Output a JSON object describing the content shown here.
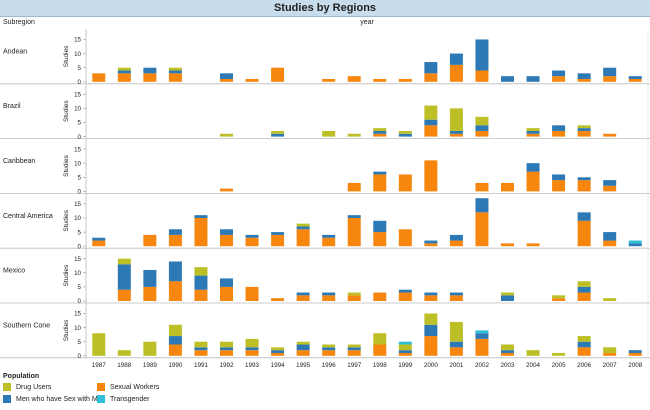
{
  "chart_data": {
    "type": "bar",
    "stacked": true,
    "title": "Studies by Regions",
    "row_header": "Subregion",
    "column_header": "year",
    "ylabel": "Studies",
    "ylim": [
      0,
      18
    ],
    "yticks": [
      0,
      5,
      10,
      15
    ],
    "grid": false,
    "legend_title": "Population",
    "legend_position": "bottom-left",
    "categories": [
      "1987",
      "1988",
      "1989",
      "1990",
      "1991",
      "1992",
      "1993",
      "1994",
      "1995",
      "1996",
      "1997",
      "1998",
      "1999",
      "2000",
      "2001",
      "2002",
      "2003",
      "2004",
      "2005",
      "2006",
      "2007",
      "2008"
    ],
    "series": [
      {
        "name": "Sexual Workers",
        "color": "#f7860f"
      },
      {
        "name": "Men who have Sex with Men",
        "color": "#2d79b5"
      },
      {
        "name": "Drug Users",
        "color": "#bcc026"
      },
      {
        "name": "Transgender",
        "color": "#2cbfd6"
      }
    ],
    "legend_order": [
      "Drug Users",
      "Sexual Workers",
      "Men who have Sex with Men",
      "Transgender"
    ],
    "panels": [
      {
        "name": "Andean",
        "values": {
          "Sexual Workers": [
            3,
            3,
            3,
            3,
            0,
            1,
            1,
            5,
            0,
            1,
            2,
            1,
            1,
            3,
            6,
            4,
            0,
            0,
            2,
            1,
            2,
            1
          ],
          "Men who have Sex with Men": [
            0,
            1,
            2,
            1,
            0,
            2,
            0,
            0,
            0,
            0,
            0,
            0,
            0,
            4,
            4,
            11,
            2,
            2,
            2,
            2,
            3,
            1
          ],
          "Drug Users": [
            0,
            1,
            0,
            1,
            0,
            0,
            0,
            0,
            0,
            0,
            0,
            0,
            0,
            0,
            0,
            0,
            0,
            0,
            0,
            0,
            0,
            0
          ],
          "Transgender": [
            0,
            0,
            0,
            0,
            0,
            0,
            0,
            0,
            0,
            0,
            0,
            0,
            0,
            0,
            0,
            0,
            0,
            0,
            0,
            0,
            0,
            0
          ]
        }
      },
      {
        "name": "Brazil",
        "values": {
          "Sexual Workers": [
            0,
            0,
            0,
            0,
            0,
            0,
            0,
            0,
            0,
            0,
            0,
            1,
            0,
            4,
            1,
            2,
            0,
            1,
            2,
            2,
            1,
            0
          ],
          "Men who have Sex with Men": [
            0,
            0,
            0,
            0,
            0,
            0,
            0,
            1,
            0,
            0,
            0,
            1,
            1,
            2,
            1,
            2,
            0,
            1,
            2,
            1,
            0,
            0
          ],
          "Drug Users": [
            0,
            0,
            0,
            0,
            0,
            1,
            0,
            1,
            0,
            2,
            1,
            1,
            1,
            5,
            8,
            3,
            0,
            1,
            0,
            1,
            0,
            0
          ],
          "Transgender": [
            0,
            0,
            0,
            0,
            0,
            0,
            0,
            0,
            0,
            0,
            0,
            0,
            0,
            0,
            0,
            0,
            0,
            0,
            0,
            0,
            0,
            0
          ]
        }
      },
      {
        "name": "Caribbean",
        "values": {
          "Sexual Workers": [
            0,
            0,
            0,
            0,
            0,
            1,
            0,
            0,
            0,
            0,
            3,
            6,
            6,
            11,
            0,
            3,
            3,
            7,
            4,
            4,
            2,
            0
          ],
          "Men who have Sex with Men": [
            0,
            0,
            0,
            0,
            0,
            0,
            0,
            0,
            0,
            0,
            0,
            1,
            0,
            0,
            0,
            0,
            0,
            3,
            2,
            1,
            2,
            0
          ],
          "Drug Users": [
            0,
            0,
            0,
            0,
            0,
            0,
            0,
            0,
            0,
            0,
            0,
            0,
            0,
            0,
            0,
            0,
            0,
            0,
            0,
            0,
            0,
            0
          ],
          "Transgender": [
            0,
            0,
            0,
            0,
            0,
            0,
            0,
            0,
            0,
            0,
            0,
            0,
            0,
            0,
            0,
            0,
            0,
            0,
            0,
            0,
            0,
            0
          ]
        }
      },
      {
        "name": "Central America",
        "values": {
          "Sexual Workers": [
            2,
            0,
            4,
            4,
            10,
            4,
            3,
            4,
            6,
            3,
            10,
            5,
            6,
            1,
            2,
            12,
            1,
            1,
            0,
            9,
            2,
            0
          ],
          "Men who have Sex with Men": [
            1,
            0,
            0,
            2,
            1,
            2,
            1,
            1,
            1,
            1,
            1,
            4,
            0,
            1,
            2,
            5,
            0,
            0,
            0,
            3,
            3,
            1
          ],
          "Drug Users": [
            0,
            0,
            0,
            0,
            0,
            0,
            0,
            0,
            1,
            0,
            0,
            0,
            0,
            0,
            0,
            0,
            0,
            0,
            0,
            0,
            0,
            0
          ],
          "Transgender": [
            0,
            0,
            0,
            0,
            0,
            0,
            0,
            0,
            0,
            0,
            0,
            0,
            0,
            0,
            0,
            0,
            0,
            0,
            0,
            0,
            0,
            1
          ]
        }
      },
      {
        "name": "Mexico",
        "values": {
          "Sexual Workers": [
            0,
            4,
            5,
            7,
            4,
            5,
            5,
            1,
            2,
            2,
            2,
            3,
            3,
            2,
            2,
            0,
            0,
            0,
            1,
            3,
            0,
            0
          ],
          "Men who have Sex with Men": [
            0,
            9,
            6,
            7,
            5,
            3,
            0,
            0,
            1,
            1,
            0,
            0,
            1,
            1,
            1,
            0,
            2,
            0,
            0,
            2,
            0,
            0
          ],
          "Drug Users": [
            0,
            2,
            0,
            0,
            3,
            0,
            0,
            0,
            0,
            0,
            1,
            0,
            0,
            0,
            0,
            0,
            1,
            0,
            1,
            2,
            1,
            0
          ],
          "Transgender": [
            0,
            0,
            0,
            0,
            0,
            0,
            0,
            0,
            0,
            0,
            0,
            0,
            0,
            0,
            0,
            0,
            0,
            0,
            0,
            0,
            0,
            0
          ]
        }
      },
      {
        "name": "Southern Cone",
        "values": {
          "Sexual Workers": [
            0,
            0,
            0,
            4,
            2,
            2,
            2,
            1,
            2,
            2,
            2,
            4,
            1,
            7,
            3,
            6,
            1,
            0,
            0,
            3,
            1,
            1
          ],
          "Men who have Sex with Men": [
            0,
            0,
            0,
            3,
            1,
            1,
            1,
            1,
            2,
            1,
            1,
            0,
            1,
            4,
            2,
            2,
            1,
            0,
            0,
            2,
            0,
            1
          ],
          "Drug Users": [
            8,
            2,
            5,
            4,
            2,
            2,
            3,
            1,
            1,
            1,
            1,
            4,
            2,
            4,
            7,
            0,
            2,
            2,
            1,
            2,
            2,
            0
          ],
          "Transgender": [
            0,
            0,
            0,
            0,
            0,
            0,
            0,
            0,
            0,
            0,
            0,
            0,
            1,
            0,
            0,
            1,
            0,
            0,
            0,
            0,
            0,
            0
          ]
        }
      }
    ]
  }
}
